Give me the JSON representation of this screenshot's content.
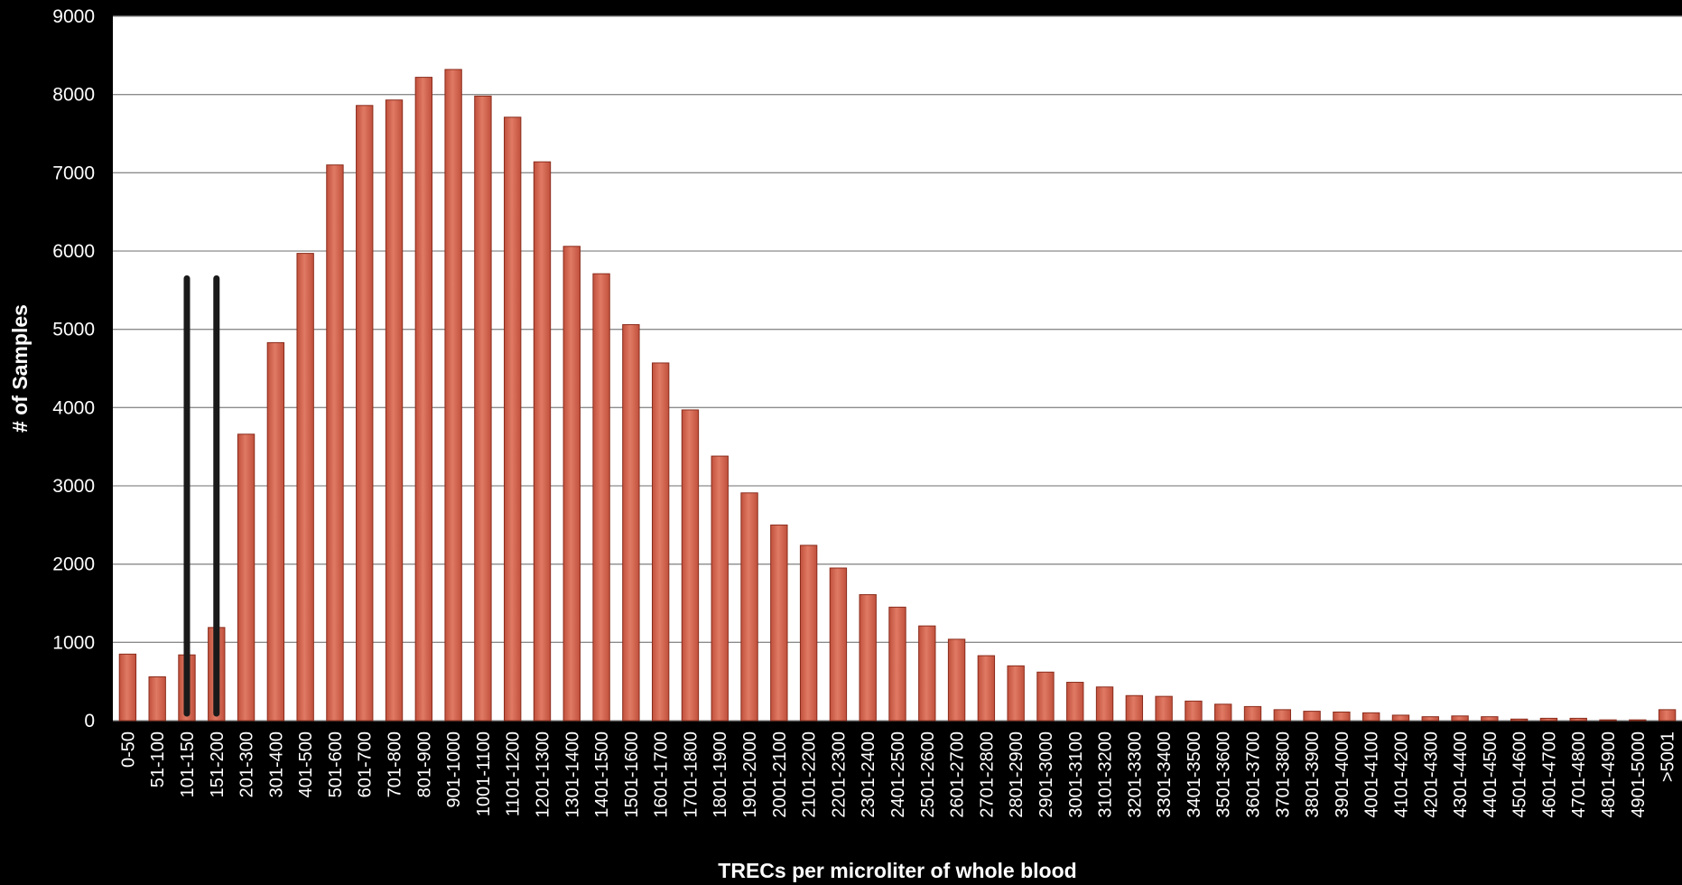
{
  "chart_data": {
    "type": "bar",
    "title": "",
    "xlabel": "TRECs per microliter of whole blood",
    "ylabel": "# of Samples",
    "ylim": [
      0,
      9000
    ],
    "yticks": [
      0,
      1000,
      2000,
      3000,
      4000,
      5000,
      6000,
      7000,
      8000,
      9000
    ],
    "grid": true,
    "legend": "none",
    "categories": [
      "0-50",
      "51-100",
      "101-150",
      "151-200",
      "201-300",
      "301-400",
      "401-500",
      "501-600",
      "601-700",
      "701-800",
      "801-900",
      "901-1000",
      "1001-1100",
      "1101-1200",
      "1201-1300",
      "1301-1400",
      "1401-1500",
      "1501-1600",
      "1601-1700",
      "1701-1800",
      "1801-1900",
      "1901-2000",
      "2001-2100",
      "2101-2200",
      "2201-2300",
      "2301-2400",
      "2401-2500",
      "2501-2600",
      "2601-2700",
      "2701-2800",
      "2801-2900",
      "2901-3000",
      "3001-3100",
      "3101-3200",
      "3201-3300",
      "3301-3400",
      "3401-3500",
      "3501-3600",
      "3601-3700",
      "3701-3800",
      "3801-3900",
      "3901-4000",
      "4001-4100",
      "4101-4200",
      "4201-4300",
      "4301-4400",
      "4401-4500",
      "4501-4600",
      "4601-4700",
      "4701-4800",
      "4801-4900",
      "4901-5000",
      ">5001"
    ],
    "series": [
      {
        "values": [
          850,
          560,
          840,
          1190,
          3660,
          4830,
          5970,
          7100,
          7860,
          7930,
          8220,
          8320,
          7980,
          7710,
          7140,
          6060,
          5710,
          5060,
          4570,
          3970,
          3380,
          2910,
          2500,
          2240,
          1950,
          1610,
          1450,
          1210,
          1040,
          830,
          700,
          620,
          490,
          430,
          320,
          310,
          250,
          210,
          180,
          140,
          120,
          110,
          100,
          70,
          50,
          60,
          50,
          20,
          30,
          30,
          10,
          10,
          140
        ]
      }
    ],
    "markers": [
      {
        "category": "101-150",
        "value": 5650
      },
      {
        "category": "151-200",
        "value": 5650
      }
    ],
    "colors": {
      "background": "#000000",
      "plot_background": "#ffffff",
      "bar_fill": "#c0503c",
      "bar_highlight": "#e07a64",
      "bar_edge": "#8a2c1c",
      "gridline": "#8c8c8c",
      "marker": "#1a1a1a",
      "text": "#ffffff"
    }
  }
}
